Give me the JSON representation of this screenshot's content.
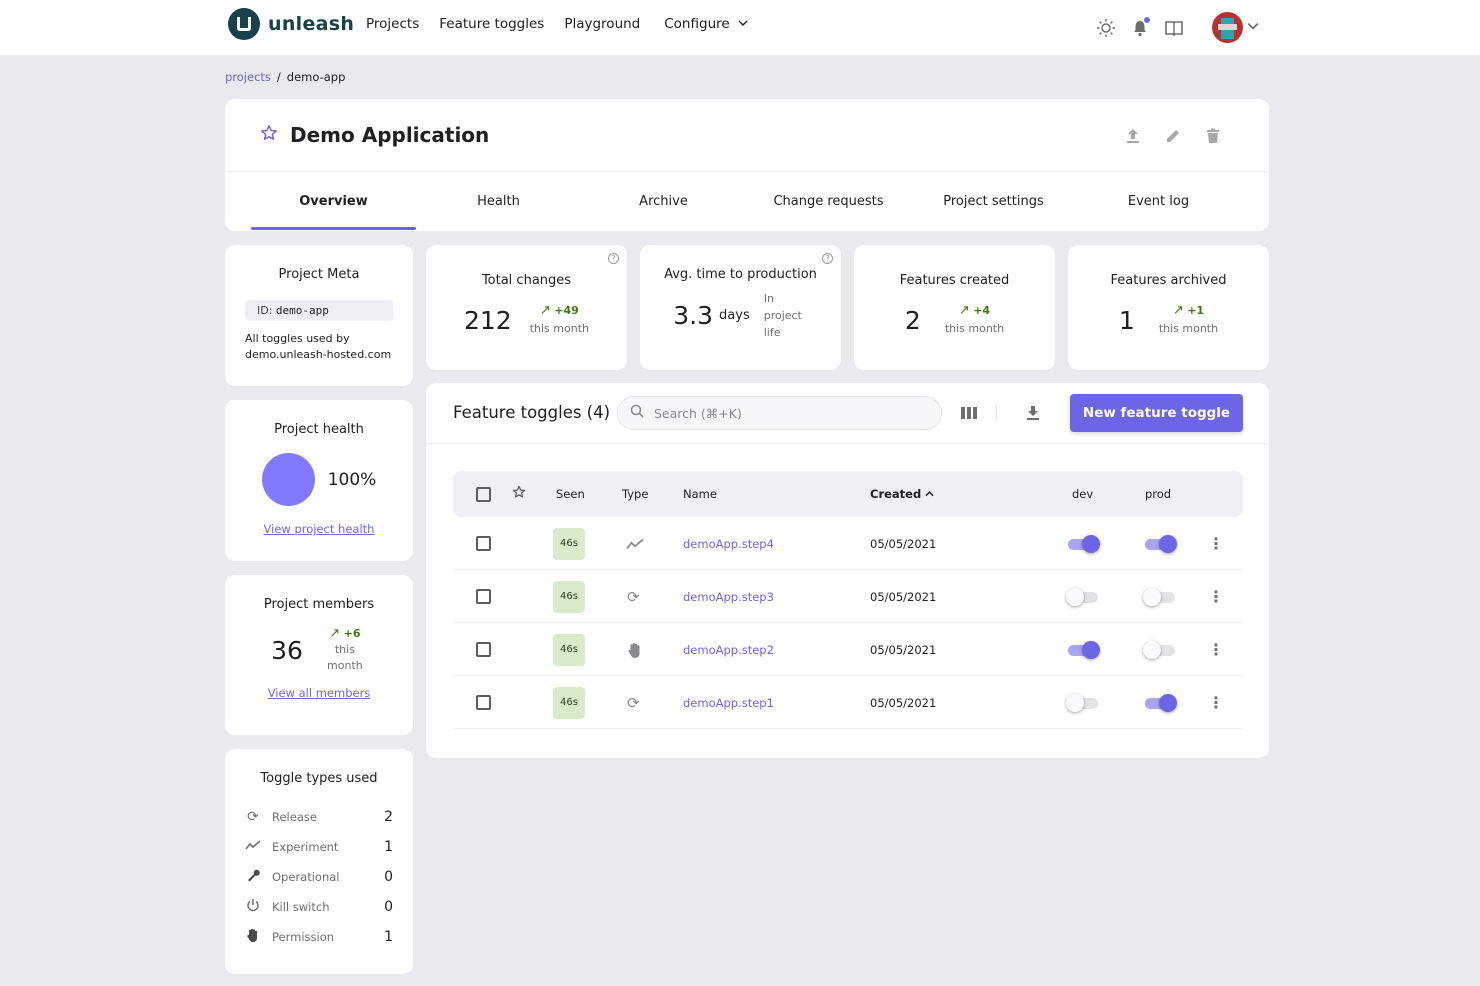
{
  "header": {
    "logo_text": "unleash",
    "nav": [
      "Projects",
      "Feature toggles",
      "Playground"
    ],
    "configure_label": "Configure"
  },
  "breadcrumb": {
    "root": "projects",
    "sep": "/",
    "current": "demo-app"
  },
  "project": {
    "title": "Demo Application",
    "tabs": [
      "Overview",
      "Health",
      "Archive",
      "Change requests",
      "Project settings",
      "Event log"
    ],
    "active_tab": "Overview"
  },
  "meta": {
    "title": "Project Meta",
    "id_label": "ID:",
    "id_value": "demo-app",
    "description": "All toggles used by demo.unleash-hosted.com"
  },
  "health": {
    "title": "Project health",
    "percent": "100%",
    "link": "View project health"
  },
  "members": {
    "title": "Project members",
    "count": "36",
    "trend": "+6",
    "trend_suffix": "this month",
    "link": "View all members"
  },
  "toggle_types": {
    "title": "Toggle types used",
    "items": [
      {
        "label": "Release",
        "count": "2",
        "icon": "release-icon"
      },
      {
        "label": "Experiment",
        "count": "1",
        "icon": "experiment-icon"
      },
      {
        "label": "Operational",
        "count": "0",
        "icon": "wrench-icon"
      },
      {
        "label": "Kill switch",
        "count": "0",
        "icon": "power-icon"
      },
      {
        "label": "Permission",
        "count": "1",
        "icon": "hand-icon"
      }
    ]
  },
  "stats": {
    "total_changes": {
      "title": "Total changes",
      "value": "212",
      "trend": "+49",
      "suffix": "this month"
    },
    "avg_time": {
      "title": "Avg. time to production",
      "value": "3.3",
      "unit": "days",
      "suffix": "In project life"
    },
    "features_created": {
      "title": "Features created",
      "value": "2",
      "trend": "+4",
      "suffix": "this month"
    },
    "features_archived": {
      "title": "Features archived",
      "value": "1",
      "trend": "+1",
      "suffix": "this month"
    }
  },
  "feature_table": {
    "title": "Feature toggles (4)",
    "search_placeholder": "Search (⌘+K)",
    "new_button": "New feature toggle",
    "columns": {
      "seen": "Seen",
      "type": "Type",
      "name": "Name",
      "created": "Created",
      "dev": "dev",
      "prod": "prod"
    },
    "rows": [
      {
        "seen": "46s",
        "type": "experiment",
        "name": "demoApp.step4",
        "created": "05/05/2021",
        "dev": true,
        "prod": true
      },
      {
        "seen": "46s",
        "type": "release",
        "name": "demoApp.step3",
        "created": "05/05/2021",
        "dev": false,
        "prod": false
      },
      {
        "seen": "46s",
        "type": "permission",
        "name": "demoApp.step2",
        "created": "05/05/2021",
        "dev": true,
        "prod": false
      },
      {
        "seen": "46s",
        "type": "release",
        "name": "demoApp.step1",
        "created": "05/05/2021",
        "dev": false,
        "prod": true
      }
    ]
  },
  "colors": {
    "accent": "#6c65e5",
    "health": "#817afe",
    "trend_up": "#3c7a0e",
    "seen_bg": "#daebcb"
  }
}
